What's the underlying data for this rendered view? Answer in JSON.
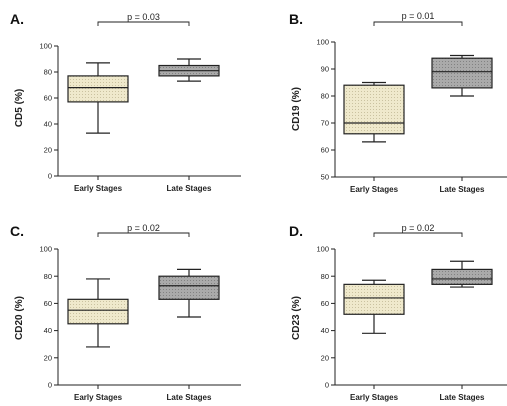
{
  "chart_data": [
    {
      "type": "box",
      "panel": "A.",
      "ylabel": "CD5 (%)",
      "ylim": [
        0,
        100
      ],
      "yticks": [
        0,
        20,
        40,
        60,
        80,
        100
      ],
      "categories": [
        "Early Stages",
        "Late Stages"
      ],
      "boxes": [
        {
          "category": "Early Stages",
          "min": 33,
          "q1": 57,
          "median": 68,
          "q3": 77,
          "max": 87,
          "color": "#ece6c8"
        },
        {
          "category": "Late Stages",
          "min": 73,
          "q1": 77,
          "median": 81,
          "q3": 85,
          "max": 90,
          "color": "#a9a9a9"
        }
      ],
      "annotation": "p = 0.03"
    },
    {
      "type": "box",
      "panel": "B.",
      "ylabel": "CD19 (%)",
      "ylim": [
        50,
        100
      ],
      "yticks": [
        50,
        60,
        70,
        80,
        90,
        100
      ],
      "categories": [
        "Early Stages",
        "Late Stages"
      ],
      "boxes": [
        {
          "category": "Early Stages",
          "min": 63,
          "q1": 66,
          "median": 70,
          "q3": 84,
          "max": 85,
          "color": "#ece6c8"
        },
        {
          "category": "Late Stages",
          "min": 80,
          "q1": 83,
          "median": 89,
          "q3": 94,
          "max": 95,
          "color": "#a9a9a9"
        }
      ],
      "annotation": "p = 0.01"
    },
    {
      "type": "box",
      "panel": "C.",
      "ylabel": "CD20 (%)",
      "ylim": [
        0,
        100
      ],
      "yticks": [
        0,
        20,
        40,
        60,
        80,
        100
      ],
      "categories": [
        "Early Stages",
        "Late Stages"
      ],
      "boxes": [
        {
          "category": "Early Stages",
          "min": 28,
          "q1": 45,
          "median": 55,
          "q3": 63,
          "max": 78,
          "color": "#ece6c8"
        },
        {
          "category": "Late Stages",
          "min": 50,
          "q1": 63,
          "median": 73,
          "q3": 80,
          "max": 85,
          "color": "#a9a9a9"
        }
      ],
      "annotation": "p = 0.02"
    },
    {
      "type": "box",
      "panel": "D.",
      "ylabel": "CD23 (%)",
      "ylim": [
        0,
        100
      ],
      "yticks": [
        0,
        20,
        40,
        60,
        80,
        100
      ],
      "categories": [
        "Early Stages",
        "Late Stages"
      ],
      "boxes": [
        {
          "category": "Early Stages",
          "min": 38,
          "q1": 52,
          "median": 64,
          "q3": 74,
          "max": 77,
          "color": "#ece6c8"
        },
        {
          "category": "Late Stages",
          "min": 72,
          "q1": 74,
          "median": 78,
          "q3": 85,
          "max": 91,
          "color": "#a9a9a9"
        }
      ],
      "annotation": "p = 0.02"
    }
  ]
}
